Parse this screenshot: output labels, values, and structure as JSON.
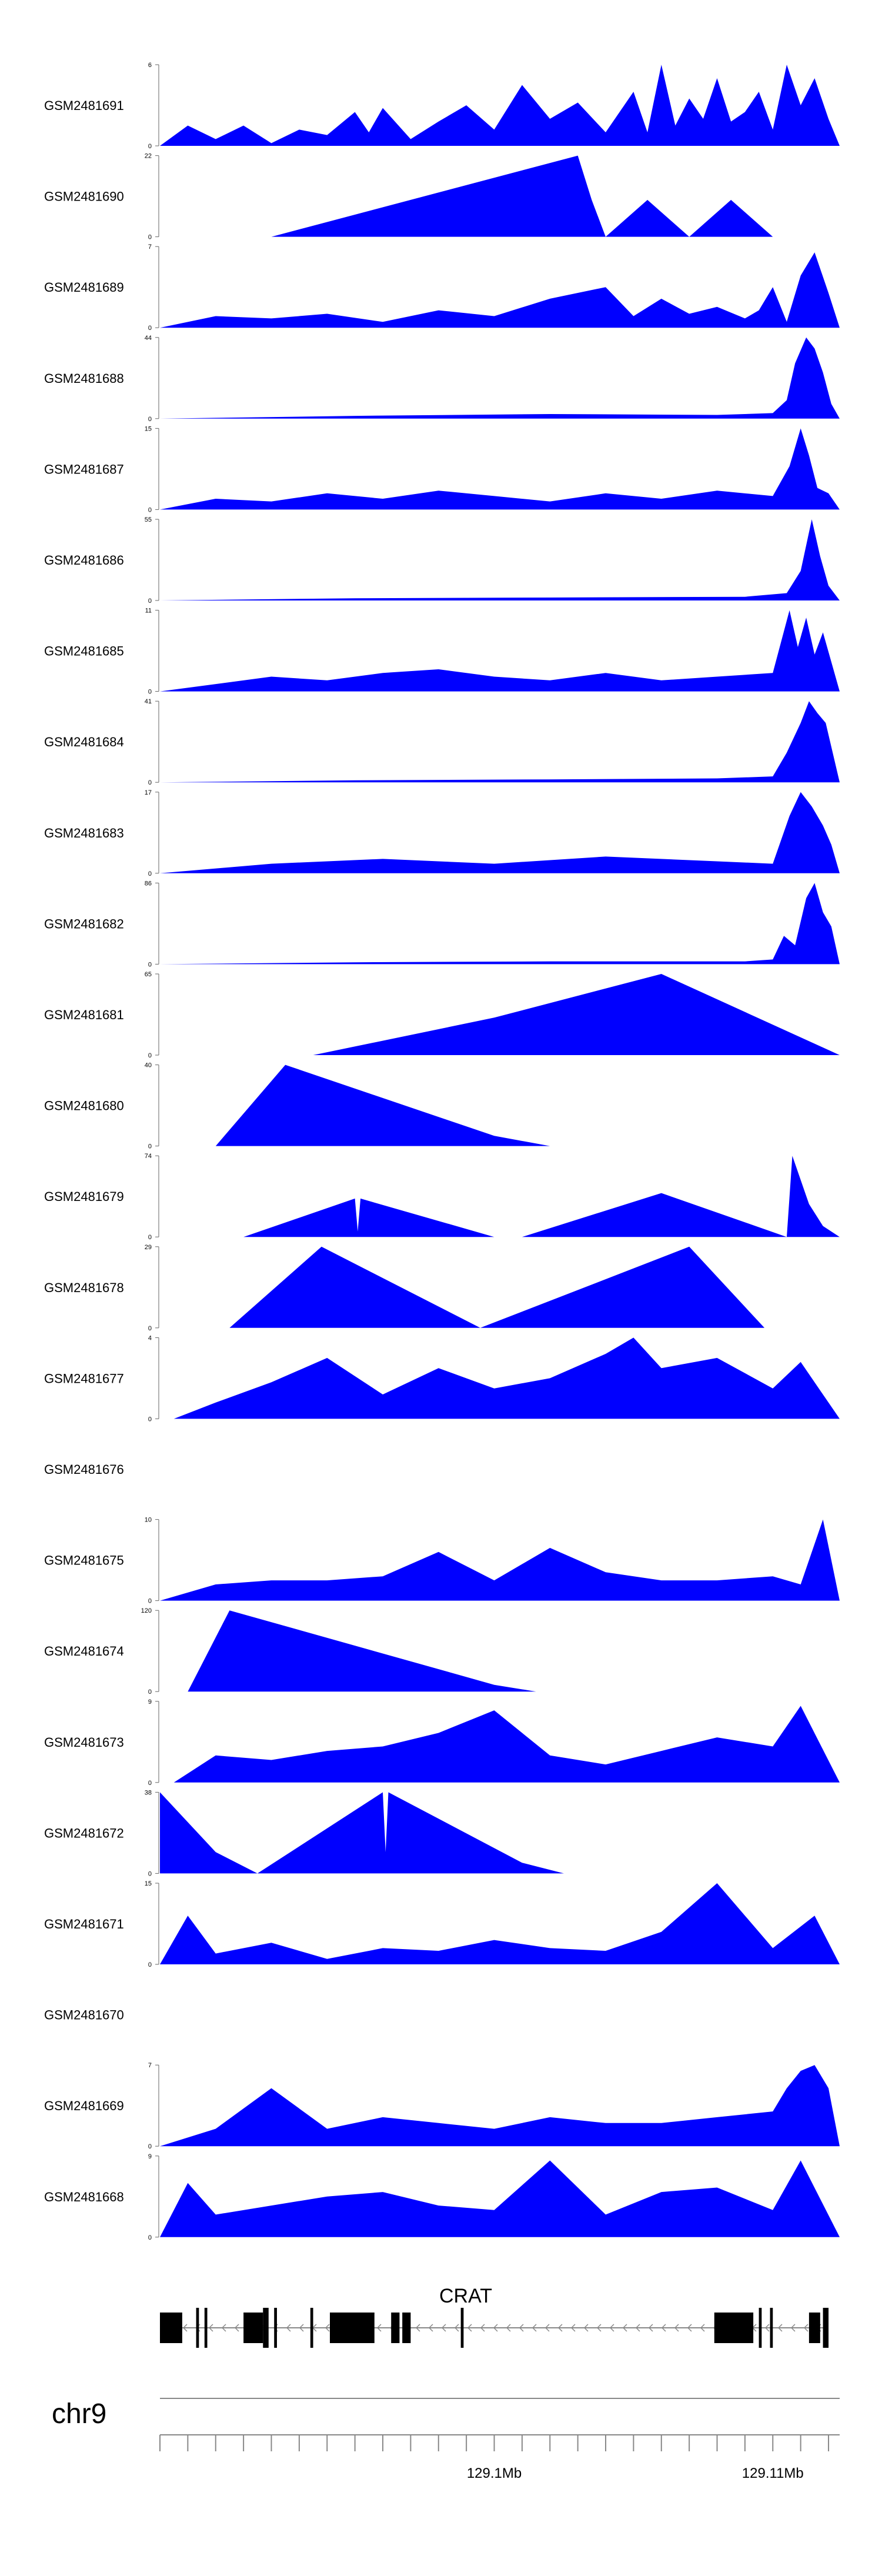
{
  "chart_data": {
    "type": "area",
    "title": "",
    "fill_color": "#0000FF",
    "x_range_mb": [
      129.088,
      129.1124
    ],
    "tracks": [
      {
        "name": "GSM2481691",
        "ymin": "0",
        "ymax": "6",
        "peak": 6,
        "x": [
          129.088,
          129.089,
          129.09,
          129.091,
          129.092,
          129.093,
          129.094,
          129.095,
          129.0955,
          129.096,
          129.097,
          129.098,
          129.099,
          129.1,
          129.101,
          129.102,
          129.103,
          129.104,
          129.1045,
          129.105,
          129.1055,
          129.106,
          129.1065,
          129.107,
          129.1075,
          129.108,
          129.1085,
          129.109,
          129.1095,
          129.11,
          129.1105,
          129.111,
          129.1115,
          129.112,
          129.1124
        ],
        "y": [
          0,
          1.5,
          0.5,
          1.5,
          0.2,
          1.2,
          0.8,
          2.5,
          1.0,
          2.8,
          0.5,
          1.8,
          3.0,
          1.2,
          4.5,
          2.0,
          3.2,
          1.0,
          2.5,
          4.0,
          1.0,
          6.0,
          1.5,
          3.5,
          2.0,
          5.0,
          1.8,
          2.5,
          4.0,
          1.2,
          6.0,
          3.0,
          5.0,
          2.0,
          0
        ]
      },
      {
        "name": "GSM2481690",
        "ymin": "0",
        "ymax": "22",
        "peak": 22,
        "x": [
          129.092,
          129.103,
          129.1035,
          129.104,
          129.1055,
          129.107,
          129.1085,
          129.11,
          129.1125
        ],
        "y": [
          0,
          22,
          10,
          0,
          10,
          0,
          10,
          0,
          0
        ]
      },
      {
        "name": "GSM2481689",
        "ymin": "0",
        "ymax": "7",
        "peak": 7,
        "x": [
          129.088,
          129.09,
          129.092,
          129.094,
          129.096,
          129.098,
          129.1,
          129.102,
          129.104,
          129.105,
          129.106,
          129.107,
          129.108,
          129.109,
          129.1095,
          129.11,
          129.1105,
          129.111,
          129.1115,
          129.112,
          129.1124
        ],
        "y": [
          0,
          1.0,
          0.8,
          1.2,
          0.5,
          1.5,
          1.0,
          2.5,
          3.5,
          1.0,
          2.5,
          1.2,
          1.8,
          0.8,
          1.5,
          3.5,
          0.5,
          4.5,
          6.5,
          3.0,
          0
        ]
      },
      {
        "name": "GSM2481688",
        "ymin": "0",
        "ymax": "44",
        "peak": 44,
        "x": [
          129.088,
          129.095,
          129.102,
          129.108,
          129.11,
          129.1105,
          129.1108,
          129.1112,
          129.1115,
          129.1118,
          129.1121,
          129.1124
        ],
        "y": [
          0,
          1.5,
          2.5,
          2.0,
          3.0,
          10,
          30,
          44,
          38,
          25,
          8,
          0
        ]
      },
      {
        "name": "GSM2481687",
        "ymin": "0",
        "ymax": "15",
        "peak": 15,
        "x": [
          129.088,
          129.09,
          129.092,
          129.094,
          129.096,
          129.098,
          129.1,
          129.102,
          129.104,
          129.106,
          129.108,
          129.11,
          129.1106,
          129.111,
          129.1113,
          129.1116,
          129.112,
          129.1124
        ],
        "y": [
          0,
          2.0,
          1.5,
          3.0,
          2.0,
          3.5,
          2.5,
          1.5,
          3.0,
          2.0,
          3.5,
          2.5,
          8.0,
          15,
          10,
          4.0,
          3.0,
          0
        ]
      },
      {
        "name": "GSM2481686",
        "ymin": "0",
        "ymax": "55",
        "peak": 55,
        "x": [
          129.088,
          129.095,
          129.102,
          129.109,
          129.1105,
          129.111,
          129.1114,
          129.1117,
          129.112,
          129.1124
        ],
        "y": [
          0,
          1.5,
          2.0,
          2.5,
          5.0,
          20,
          55,
          30,
          10,
          0
        ]
      },
      {
        "name": "GSM2481685",
        "ymin": "0",
        "ymax": "11",
        "peak": 11,
        "x": [
          129.088,
          129.09,
          129.092,
          129.094,
          129.096,
          129.098,
          129.1,
          129.102,
          129.104,
          129.106,
          129.108,
          129.11,
          129.1106,
          129.1109,
          129.1112,
          129.1115,
          129.1118,
          129.1121,
          129.1124
        ],
        "y": [
          0,
          1.0,
          2.0,
          1.5,
          2.5,
          3.0,
          2.0,
          1.5,
          2.5,
          1.5,
          2.0,
          2.5,
          11,
          6.0,
          10,
          5.0,
          8.0,
          4.0,
          0
        ]
      },
      {
        "name": "GSM2481684",
        "ymin": "0",
        "ymax": "41",
        "peak": 41,
        "x": [
          129.088,
          129.095,
          129.102,
          129.108,
          129.11,
          129.1105,
          129.111,
          129.1113,
          129.1116,
          129.1119,
          129.1122,
          129.1124
        ],
        "y": [
          0,
          1.0,
          1.5,
          2.0,
          3.0,
          15,
          30,
          41,
          35,
          30,
          12,
          0
        ]
      },
      {
        "name": "GSM2481683",
        "ymin": "0",
        "ymax": "17",
        "peak": 17,
        "x": [
          129.088,
          129.092,
          129.096,
          129.1,
          129.104,
          129.108,
          129.11,
          129.1106,
          129.111,
          129.1114,
          129.1118,
          129.1121,
          129.1124
        ],
        "y": [
          0,
          2.0,
          3.0,
          2.0,
          3.5,
          2.5,
          2.0,
          12,
          17,
          14,
          10,
          6.0,
          0
        ]
      },
      {
        "name": "GSM2481682",
        "ymin": "0",
        "ymax": "86",
        "peak": 86,
        "x": [
          129.088,
          129.095,
          129.102,
          129.109,
          129.11,
          129.1104,
          129.1108,
          129.1112,
          129.1115,
          129.1118,
          129.1121,
          129.1124
        ],
        "y": [
          0,
          2.0,
          3.0,
          3.0,
          5.0,
          30,
          20,
          70,
          86,
          55,
          40,
          0
        ]
      },
      {
        "name": "GSM2481681",
        "ymin": "0",
        "ymax": "65",
        "peak": 65,
        "x": [
          129.0935,
          129.1,
          129.106,
          129.1124
        ],
        "y": [
          0,
          30,
          65,
          0
        ]
      },
      {
        "name": "GSM2481680",
        "ymin": "0",
        "ymax": "40",
        "peak": 40,
        "x": [
          129.09,
          129.0925,
          129.1,
          129.102
        ],
        "y": [
          0,
          40,
          5,
          0
        ]
      },
      {
        "name": "GSM2481679",
        "ymin": "0",
        "ymax": "74",
        "peak": 74,
        "x": [
          129.091,
          129.095,
          129.0951,
          129.0952,
          129.1,
          129.101,
          129.106,
          129.1105,
          129.1107,
          129.1113,
          129.1118,
          129.1124
        ],
        "y": [
          0,
          35,
          5,
          35,
          0,
          0,
          40,
          0,
          74,
          30,
          10,
          0
        ]
      },
      {
        "name": "GSM2481678",
        "ymin": "0",
        "ymax": "29",
        "peak": 29,
        "x": [
          129.0905,
          129.0938,
          129.0995,
          129.107,
          129.1097
        ],
        "y": [
          0,
          29,
          0,
          29,
          0
        ]
      },
      {
        "name": "GSM2481677",
        "ymin": "0",
        "ymax": "4",
        "peak": 4,
        "x": [
          129.0885,
          129.09,
          129.092,
          129.094,
          129.096,
          129.098,
          129.1,
          129.102,
          129.104,
          129.105,
          129.106,
          129.108,
          129.11,
          129.111,
          129.1124
        ],
        "y": [
          0,
          0.8,
          1.8,
          3.0,
          1.2,
          2.5,
          1.5,
          2.0,
          3.2,
          4.0,
          2.5,
          3.0,
          1.5,
          2.8,
          0
        ]
      },
      {
        "name": "GSM2481676",
        "ymin": "",
        "ymax": "",
        "peak": 0,
        "x": [],
        "y": []
      },
      {
        "name": "GSM2481675",
        "ymin": "0",
        "ymax": "10",
        "peak": 10,
        "x": [
          129.088,
          129.09,
          129.092,
          129.094,
          129.096,
          129.098,
          129.1,
          129.102,
          129.104,
          129.106,
          129.108,
          129.11,
          129.111,
          129.1118,
          129.1124
        ],
        "y": [
          0,
          2.0,
          2.5,
          2.5,
          3.0,
          6.0,
          2.5,
          6.5,
          3.5,
          2.5,
          2.5,
          3.0,
          2.0,
          10,
          0
        ]
      },
      {
        "name": "GSM2481674",
        "ymin": "0",
        "ymax": "120",
        "peak": 120,
        "x": [
          129.089,
          129.0905,
          129.1,
          129.1015
        ],
        "y": [
          0,
          120,
          10,
          0
        ]
      },
      {
        "name": "GSM2481673",
        "ymin": "0",
        "ymax": "9",
        "peak": 9,
        "x": [
          129.0885,
          129.09,
          129.092,
          129.094,
          129.096,
          129.098,
          129.1,
          129.102,
          129.104,
          129.106,
          129.108,
          129.11,
          129.111,
          129.1124
        ],
        "y": [
          0,
          3.0,
          2.5,
          3.5,
          4.0,
          5.5,
          8.0,
          3.0,
          2.0,
          3.5,
          5.0,
          4.0,
          8.5,
          0
        ]
      },
      {
        "name": "GSM2481672",
        "ymin": "0",
        "ymax": "38",
        "peak": 38,
        "x": [
          129.088,
          129.09,
          129.0915,
          129.096,
          129.0961,
          129.0962,
          129.101,
          129.1025
        ],
        "y": [
          38,
          10,
          0,
          38,
          10,
          38,
          5,
          0
        ]
      },
      {
        "name": "GSM2481671",
        "ymin": "0",
        "ymax": "15",
        "peak": 15,
        "x": [
          129.088,
          129.089,
          129.09,
          129.092,
          129.094,
          129.096,
          129.098,
          129.1,
          129.102,
          129.104,
          129.106,
          129.108,
          129.11,
          129.1115,
          129.1124
        ],
        "y": [
          0,
          9.0,
          2.0,
          4.0,
          1.0,
          3.0,
          2.5,
          4.5,
          3.0,
          2.5,
          6.0,
          15,
          3.0,
          9.0,
          0
        ]
      },
      {
        "name": "GSM2481670",
        "ymin": "",
        "ymax": "",
        "peak": 0,
        "x": [],
        "y": []
      },
      {
        "name": "GSM2481669",
        "ymin": "0",
        "ymax": "7",
        "peak": 7,
        "x": [
          129.088,
          129.09,
          129.092,
          129.094,
          129.096,
          129.098,
          129.1,
          129.102,
          129.104,
          129.106,
          129.108,
          129.11,
          129.1105,
          129.111,
          129.1115,
          129.112,
          129.1124
        ],
        "y": [
          0,
          1.5,
          5.0,
          1.5,
          2.5,
          2.0,
          1.5,
          2.5,
          2.0,
          2.0,
          2.5,
          3.0,
          5.0,
          6.5,
          7.0,
          5.0,
          0
        ]
      },
      {
        "name": "GSM2481668",
        "ymin": "0",
        "ymax": "9",
        "peak": 9,
        "x": [
          129.088,
          129.089,
          129.09,
          129.092,
          129.094,
          129.096,
          129.098,
          129.1,
          129.102,
          129.104,
          129.106,
          129.108,
          129.11,
          129.111,
          129.1124
        ],
        "y": [
          0,
          6.0,
          2.5,
          3.5,
          4.5,
          5.0,
          3.5,
          3.0,
          8.5,
          2.5,
          5.0,
          5.5,
          3.0,
          8.5,
          0
        ]
      }
    ],
    "gene": {
      "name": "CRAT",
      "strand": "-",
      "start_mb": 129.088,
      "end_mb": 129.1119,
      "exons_mb": [
        [
          129.088,
          129.0888
        ],
        [
          129.0893,
          129.0894
        ],
        [
          129.0896,
          129.0897
        ],
        [
          129.091,
          129.0917
        ],
        [
          129.0917,
          129.0918
        ],
        [
          129.0918,
          129.0919
        ],
        [
          129.0921,
          129.0922
        ],
        [
          129.0934,
          129.0935
        ],
        [
          129.0941,
          129.0957
        ],
        [
          129.0963,
          129.0966
        ],
        [
          129.0967,
          129.097
        ],
        [
          129.0988,
          129.0989
        ],
        [
          129.1079,
          129.1093
        ],
        [
          129.1095,
          129.1096
        ],
        [
          129.1099,
          129.11
        ],
        [
          129.1113,
          129.1117
        ],
        [
          129.1118,
          129.112
        ]
      ]
    },
    "chromosome": "chr9",
    "axis_ticks_mb": [
      129.088,
      129.089,
      129.09,
      129.091,
      129.092,
      129.093,
      129.094,
      129.095,
      129.096,
      129.097,
      129.098,
      129.099,
      129.1,
      129.101,
      129.102,
      129.103,
      129.104,
      129.105,
      129.106,
      129.107,
      129.108,
      129.109,
      129.11,
      129.111,
      129.112
    ],
    "axis_tick_labels": [
      {
        "value_mb": 129.1,
        "label": "129.1Mb"
      },
      {
        "value_mb": 129.11,
        "label": "129.11Mb"
      }
    ]
  }
}
